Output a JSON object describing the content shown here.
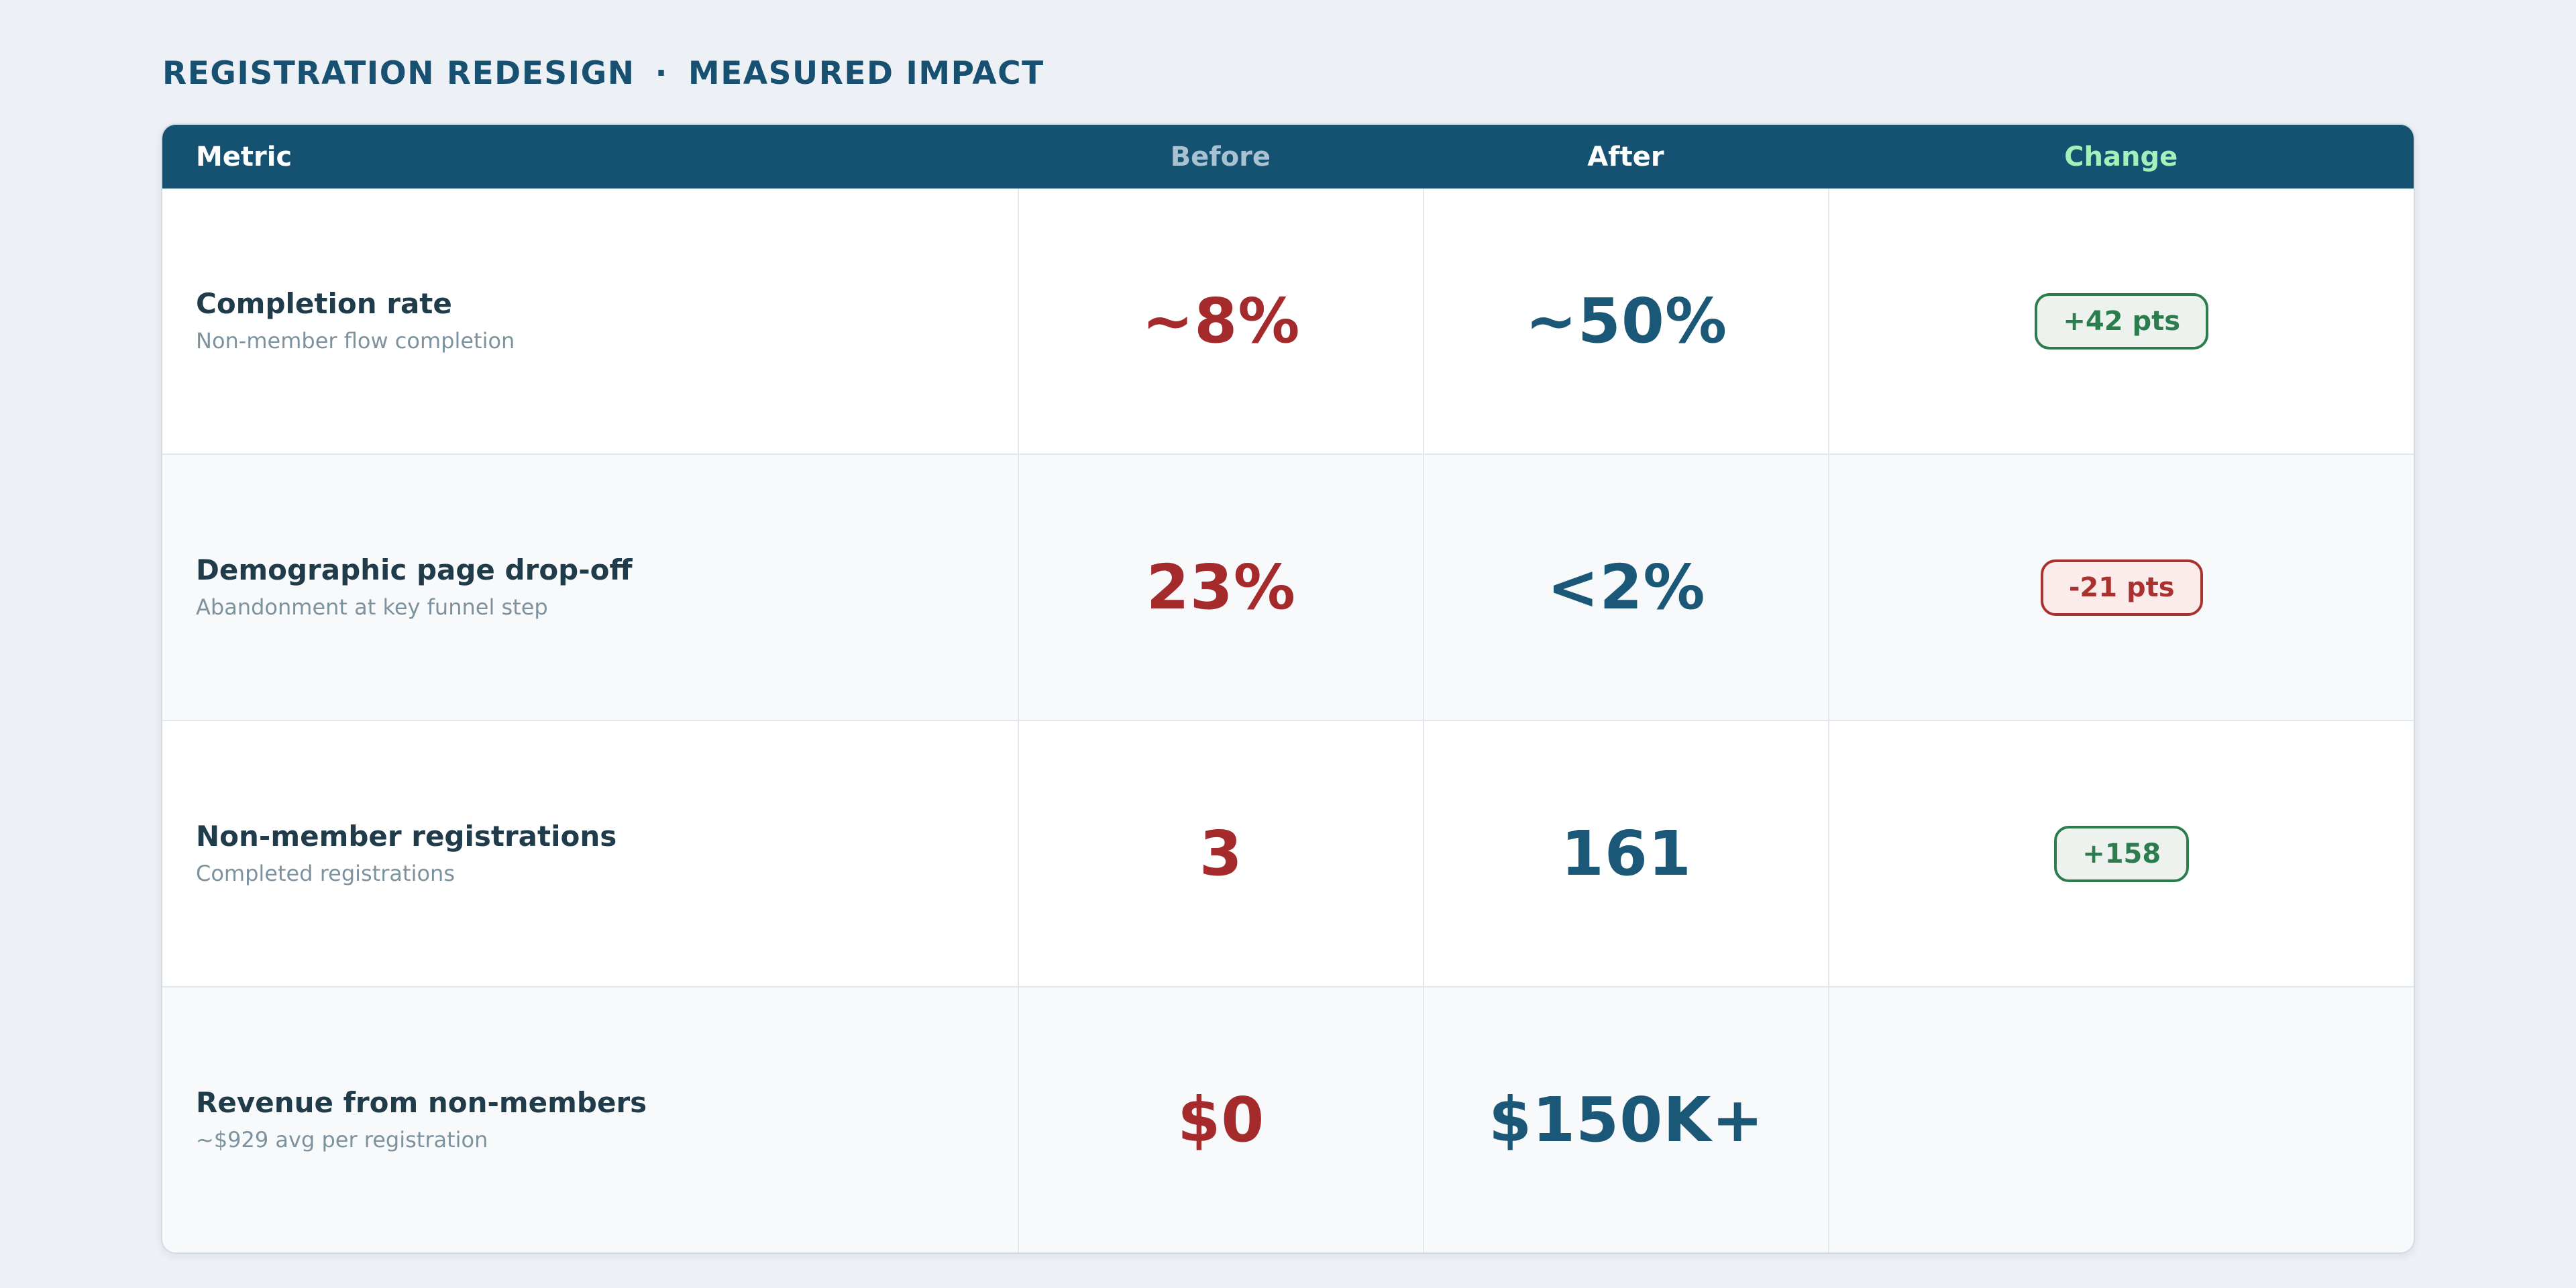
{
  "header": {
    "title_left": "REGISTRATION REDESIGN",
    "title_separator": "·",
    "title_right": "MEASURED IMPACT"
  },
  "table": {
    "columns": [
      {
        "label": "Metric"
      },
      {
        "label": "Before"
      },
      {
        "label": "After"
      },
      {
        "label": "Change"
      }
    ],
    "rows": [
      {
        "metric": "Completion rate",
        "description": "Non-member flow completion",
        "before": "~8%",
        "after": "~50%",
        "change": "+42 pts",
        "change_type": "positive"
      },
      {
        "metric": "Demographic page drop-off",
        "description": "Abandonment at key funnel step",
        "before": "23%",
        "after": "<2%",
        "change": "-21 pts",
        "change_type": "negative"
      },
      {
        "metric": "Non-member registrations",
        "description": "Completed registrations",
        "before": "3",
        "after": "161",
        "change": "+158",
        "change_type": "positive"
      },
      {
        "metric": "Revenue from non-members",
        "description": "~$929 avg per registration",
        "before": "$0",
        "after": "$150K+",
        "change": "",
        "change_type": "none"
      }
    ]
  },
  "colors": {
    "page_background": "#edf0f4",
    "header_background": "#155170",
    "title_text": "#175070",
    "header_metric_label": "#ffffff",
    "header_before_label": "#a9c2d1",
    "header_after_label": "#ffffff",
    "header_change_label": "#a5efba",
    "before_value": "#a42a2b",
    "after_value": "#1b5877",
    "metric_name": "#203b49",
    "metric_description": "#7d929f",
    "badge_positive": "#2c7d4e",
    "badge_positive_background": "#edf2ef",
    "badge_negative": "#a9322f",
    "badge_negative_background": "#fcebeb",
    "row_alternate_background": "#f7f9fb"
  },
  "chart_data": {
    "type": "table",
    "title": "REGISTRATION REDESIGN · MEASURED IMPACT",
    "columns": [
      "Metric",
      "Before",
      "After",
      "Change"
    ],
    "rows": [
      [
        "Completion rate — Non-member flow completion",
        "~8%",
        "~50%",
        "+42 pts"
      ],
      [
        "Demographic page drop-off — Abandonment at key funnel step",
        "23%",
        "<2%",
        "-21 pts"
      ],
      [
        "Non-member registrations — Completed registrations",
        "3",
        "161",
        "+158"
      ],
      [
        "Revenue from non-members — ~$929 avg per registration",
        "$0",
        "$150K+",
        ""
      ]
    ]
  }
}
